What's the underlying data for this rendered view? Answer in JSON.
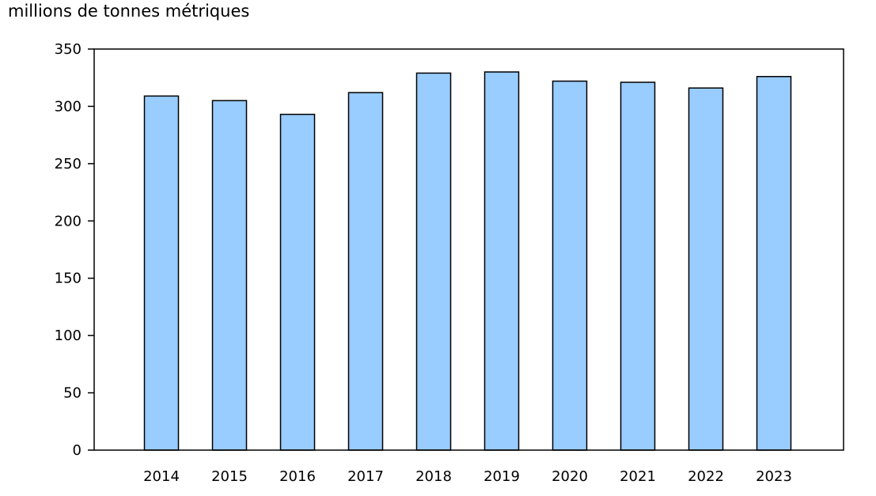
{
  "chart_data": {
    "type": "bar",
    "ylabel": "millions de tonnes métriques",
    "categories": [
      "2014",
      "2015",
      "2016",
      "2017",
      "2018",
      "2019",
      "2020",
      "2021",
      "2022",
      "2023"
    ],
    "values": [
      309,
      305,
      293,
      312,
      329,
      330,
      322,
      321,
      316,
      326
    ],
    "ylim": [
      0,
      350
    ],
    "yticks": [
      "0",
      "50",
      "100",
      "150",
      "200",
      "250",
      "300",
      "350"
    ],
    "grid": false,
    "legend": "none",
    "colors": {
      "bar_fill": "#99ccff",
      "bar_stroke": "#000000",
      "axis": "#000000"
    }
  }
}
